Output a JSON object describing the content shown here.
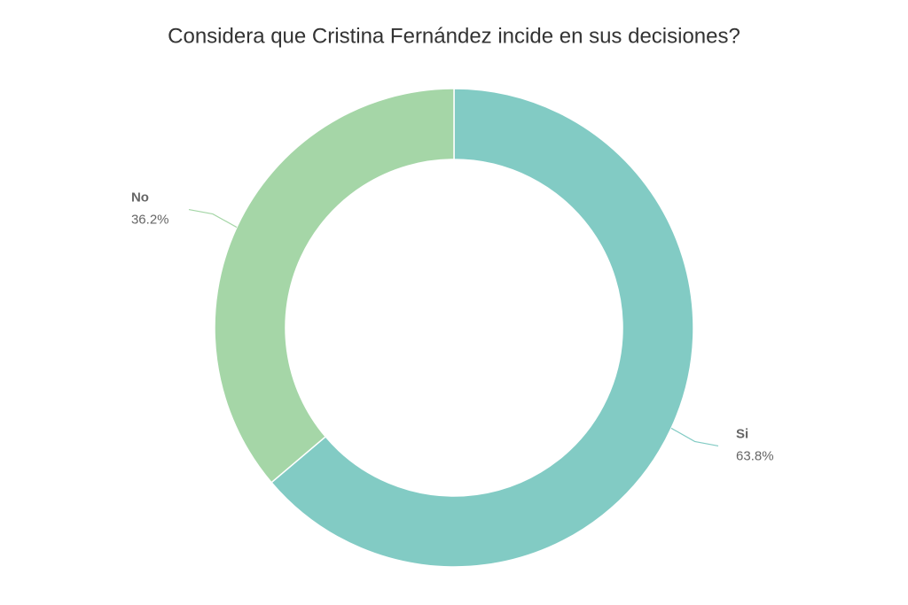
{
  "chart_data": {
    "type": "donut",
    "title": "Considera que Cristina Fernández incide en sus decisiones?",
    "categories": [
      "Si",
      "No"
    ],
    "values": [
      63.8,
      36.2
    ],
    "value_labels": [
      "63.8%",
      "36.2%"
    ],
    "colors": [
      "#82cbc4",
      "#a5d6a7"
    ]
  }
}
